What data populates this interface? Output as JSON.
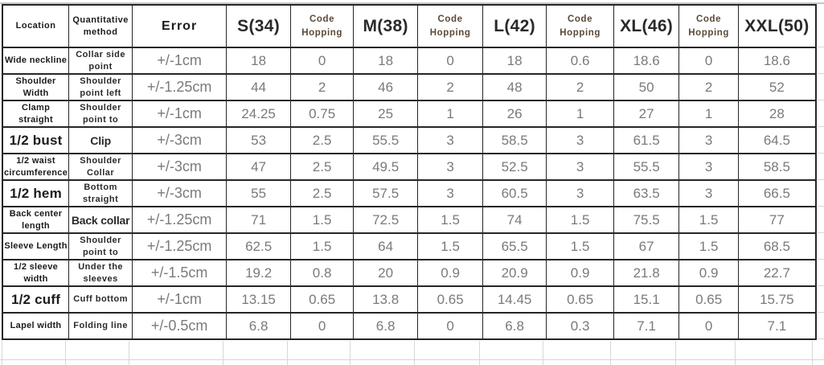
{
  "colors": {
    "table_border": "#262626",
    "faint_grid": "#d7d7d7",
    "label_text": "#1b1b1b",
    "code_hopping_text": "#5b4a38",
    "value_text": "#7a7a7a",
    "background": "#ffffff"
  },
  "chart_data": {
    "type": "table",
    "columns": [
      "Location",
      "Quantitative method",
      "Error",
      "S(34)",
      "Code Hopping",
      "M(38)",
      "Code Hopping",
      "L(42)",
      "Code Hopping",
      "XL(46)",
      "Code Hopping",
      "XXL(50)"
    ],
    "rows": [
      [
        "Wide neckline",
        "Collar side point",
        "+/-1cm",
        "18",
        "0",
        "18",
        "0",
        "18",
        "0.6",
        "18.6",
        "0",
        "18.6"
      ],
      [
        "Shoulder Width",
        "Shoulder point left",
        "+/-1.25cm",
        "44",
        "2",
        "46",
        "2",
        "48",
        "2",
        "50",
        "2",
        "52"
      ],
      [
        "Clamp straight",
        "Shoulder point to",
        "+/-1cm",
        "24.25",
        "0.75",
        "25",
        "1",
        "26",
        "1",
        "27",
        "1",
        "28"
      ],
      [
        "1/2 bust",
        "Clip",
        "+/-3cm",
        "53",
        "2.5",
        "55.5",
        "3",
        "58.5",
        "3",
        "61.5",
        "3",
        "64.5"
      ],
      [
        "1/2 waist circumference",
        "Shoulder Collar",
        "+/-3cm",
        "47",
        "2.5",
        "49.5",
        "3",
        "52.5",
        "3",
        "55.5",
        "3",
        "58.5"
      ],
      [
        "1/2 hem",
        "Bottom straight",
        "+/-3cm",
        "55",
        "2.5",
        "57.5",
        "3",
        "60.5",
        "3",
        "63.5",
        "3",
        "66.5"
      ],
      [
        "Back center length",
        "Back collar",
        "+/-1.25cm",
        "71",
        "1.5",
        "72.5",
        "1.5",
        "74",
        "1.5",
        "75.5",
        "1.5",
        "77"
      ],
      [
        "Sleeve Length",
        "Shoulder point to",
        "+/-1.25cm",
        "62.5",
        "1.5",
        "64",
        "1.5",
        "65.5",
        "1.5",
        "67",
        "1.5",
        "68.5"
      ],
      [
        "1/2 sleeve width",
        "Under the sleeves",
        "+/-1.5cm",
        "19.2",
        "0.8",
        "20",
        "0.9",
        "20.9",
        "0.9",
        "21.8",
        "0.9",
        "22.7"
      ],
      [
        "1/2 cuff",
        "Cuff bottom",
        "+/-1cm",
        "13.15",
        "0.65",
        "13.8",
        "0.65",
        "14.45",
        "0.65",
        "15.1",
        "0.65",
        "15.75"
      ],
      [
        "Lapel width",
        "Folding line",
        "+/-0.5cm",
        "6.8",
        "0",
        "6.8",
        "0",
        "6.8",
        "0.3",
        "7.1",
        "0",
        "7.1"
      ]
    ]
  }
}
